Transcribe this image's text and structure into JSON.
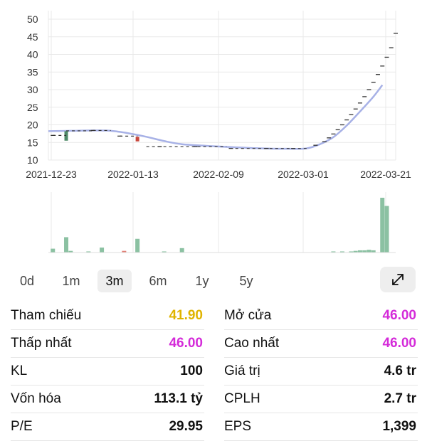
{
  "chart_data": {
    "type": "candlestick-line",
    "y_ticks": [
      "50",
      "45",
      "40",
      "35",
      "30",
      "25",
      "20",
      "15",
      "10"
    ],
    "ylim": [
      10,
      50
    ],
    "x_ticks": [
      "2021-12-23",
      "2022-01-13",
      "2022-02-09",
      "2022-03-01",
      "2022-03-21"
    ],
    "price_line": [
      [
        0,
        18.2
      ],
      [
        5,
        18.3
      ],
      [
        10,
        18.4
      ],
      [
        14,
        18.3
      ],
      [
        18,
        17.6
      ],
      [
        22,
        16.6
      ],
      [
        26,
        15.4
      ],
      [
        30,
        14.5
      ],
      [
        36,
        14.0
      ],
      [
        42,
        13.6
      ],
      [
        48,
        13.3
      ],
      [
        54,
        13.2
      ],
      [
        58,
        13.3
      ],
      [
        61,
        14.5
      ],
      [
        64,
        16.5
      ],
      [
        67,
        19.8
      ],
      [
        70,
        23.8
      ],
      [
        73,
        28.0
      ],
      [
        75,
        31.3
      ]
    ],
    "candles": [
      {
        "x": 1,
        "open": 17.0,
        "close": 17.0,
        "high": 17.0,
        "low": 17.0,
        "dir": "flat"
      },
      {
        "x": 4,
        "open": 15.5,
        "close": 18.2,
        "high": 18.2,
        "low": 15.5,
        "dir": "up"
      },
      {
        "x": 10,
        "open": 18.4,
        "close": 18.4,
        "high": 18.4,
        "low": 18.4,
        "dir": "flat"
      },
      {
        "x": 16,
        "open": 16.8,
        "close": 16.8,
        "high": 16.8,
        "low": 16.8,
        "dir": "flat"
      },
      {
        "x": 20,
        "open": 16.6,
        "close": 15.3,
        "high": 16.6,
        "low": 15.3,
        "dir": "down"
      },
      {
        "x": 25,
        "open": 13.8,
        "close": 13.8,
        "high": 13.8,
        "low": 13.8,
        "dir": "flat"
      },
      {
        "x": 33,
        "open": 13.8,
        "close": 13.8,
        "high": 13.8,
        "low": 13.8,
        "dir": "flat"
      },
      {
        "x": 41,
        "open": 13.3,
        "close": 13.3,
        "high": 13.3,
        "low": 13.3,
        "dir": "flat"
      },
      {
        "x": 49,
        "open": 13.3,
        "close": 13.3,
        "high": 13.3,
        "low": 13.3,
        "dir": "flat"
      },
      {
        "x": 55,
        "open": 13.3,
        "close": 13.3,
        "high": 13.3,
        "low": 13.3,
        "dir": "flat"
      },
      {
        "x": 60,
        "open": 14.2,
        "close": 14.2,
        "high": 14.2,
        "low": 14.2,
        "dir": "flat"
      },
      {
        "x": 62,
        "open": 15.2,
        "close": 15.2,
        "high": 15.2,
        "low": 15.2,
        "dir": "flat"
      },
      {
        "x": 63,
        "open": 16.3,
        "close": 16.3,
        "high": 16.3,
        "low": 16.3,
        "dir": "flat"
      },
      {
        "x": 64,
        "open": 17.4,
        "close": 17.4,
        "high": 17.4,
        "low": 17.4,
        "dir": "flat"
      },
      {
        "x": 65,
        "open": 18.6,
        "close": 18.6,
        "high": 18.6,
        "low": 18.6,
        "dir": "flat"
      },
      {
        "x": 66,
        "open": 20.0,
        "close": 20.0,
        "high": 20.0,
        "low": 20.0,
        "dir": "flat"
      },
      {
        "x": 67,
        "open": 21.4,
        "close": 21.4,
        "high": 21.4,
        "low": 21.4,
        "dir": "flat"
      },
      {
        "x": 68,
        "open": 22.9,
        "close": 22.9,
        "high": 22.9,
        "low": 22.9,
        "dir": "flat"
      },
      {
        "x": 69,
        "open": 24.5,
        "close": 24.5,
        "high": 24.5,
        "low": 24.5,
        "dir": "flat"
      },
      {
        "x": 70,
        "open": 26.2,
        "close": 26.2,
        "high": 26.2,
        "low": 26.2,
        "dir": "flat"
      },
      {
        "x": 71,
        "open": 28.0,
        "close": 28.0,
        "high": 28.0,
        "low": 28.0,
        "dir": "flat"
      },
      {
        "x": 72,
        "open": 30.0,
        "close": 30.0,
        "high": 30.0,
        "low": 30.0,
        "dir": "flat"
      },
      {
        "x": 73,
        "open": 32.1,
        "close": 32.1,
        "high": 32.1,
        "low": 32.1,
        "dir": "flat"
      },
      {
        "x": 74,
        "open": 34.3,
        "close": 34.3,
        "high": 34.3,
        "low": 34.3,
        "dir": "flat"
      },
      {
        "x": 75,
        "open": 36.7,
        "close": 36.7,
        "high": 36.7,
        "low": 36.7,
        "dir": "flat"
      },
      {
        "x": 76,
        "open": 39.2,
        "close": 39.2,
        "high": 39.2,
        "low": 39.2,
        "dir": "flat"
      },
      {
        "x": 77,
        "open": 41.9,
        "close": 41.9,
        "high": 41.9,
        "low": 41.9,
        "dir": "flat"
      },
      {
        "x": 78,
        "open": 46.0,
        "close": 46.0,
        "high": 46.0,
        "low": 46.0,
        "dir": "flat"
      }
    ],
    "volume": [
      {
        "x": 1,
        "v": 0.07,
        "c": "green"
      },
      {
        "x": 4,
        "v": 0.28,
        "c": "green"
      },
      {
        "x": 5,
        "v": 0.03,
        "c": "green"
      },
      {
        "x": 9,
        "v": 0.02,
        "c": "green"
      },
      {
        "x": 12,
        "v": 0.09,
        "c": "green"
      },
      {
        "x": 17,
        "v": 0.03,
        "c": "red"
      },
      {
        "x": 20,
        "v": 0.25,
        "c": "green"
      },
      {
        "x": 26,
        "v": 0.02,
        "c": "green"
      },
      {
        "x": 30,
        "v": 0.08,
        "c": "green"
      },
      {
        "x": 64,
        "v": 0.02,
        "c": "green"
      },
      {
        "x": 66,
        "v": 0.02,
        "c": "green"
      },
      {
        "x": 68,
        "v": 0.02,
        "c": "green"
      },
      {
        "x": 69,
        "v": 0.03,
        "c": "green"
      },
      {
        "x": 70,
        "v": 0.04,
        "c": "green"
      },
      {
        "x": 71,
        "v": 0.04,
        "c": "green"
      },
      {
        "x": 72,
        "v": 0.05,
        "c": "green"
      },
      {
        "x": 73,
        "v": 0.04,
        "c": "green"
      },
      {
        "x": 75,
        "v": 1.0,
        "c": "green"
      },
      {
        "x": 76,
        "v": 0.85,
        "c": "green"
      }
    ],
    "colors": {
      "line": "#a7b1e6",
      "up": "#4e8a68",
      "down": "#c9483c",
      "volume_green": "#8bc1a2",
      "volume_red": "#e07e74",
      "flat": "#333333",
      "grid": "#e9e9e9"
    }
  },
  "ranges": {
    "items": [
      "0d",
      "1m",
      "3m",
      "6m",
      "1y",
      "5y"
    ],
    "active": "3m",
    "expand_icon": "expand-arrows-icon"
  },
  "stats": {
    "left": [
      {
        "label": "Tham chiếu",
        "value": "41.90",
        "color": "yellow"
      },
      {
        "label": "Thấp nhất",
        "value": "46.00",
        "color": "magenta"
      },
      {
        "label": "KL",
        "value": "100",
        "color": "default"
      },
      {
        "label": "Vốn hóa",
        "value": "113.1 tỷ",
        "color": "default"
      },
      {
        "label": "P/E",
        "value": "29.95",
        "color": "default"
      }
    ],
    "right": [
      {
        "label": "Mở cửa",
        "value": "46.00",
        "color": "magenta"
      },
      {
        "label": "Cao nhất",
        "value": "46.00",
        "color": "magenta"
      },
      {
        "label": "Giá trị",
        "value": "4.6 tr",
        "color": "default"
      },
      {
        "label": "CPLH",
        "value": "2.7 tr",
        "color": "default"
      },
      {
        "label": "EPS",
        "value": "1,399",
        "color": "default"
      }
    ]
  }
}
